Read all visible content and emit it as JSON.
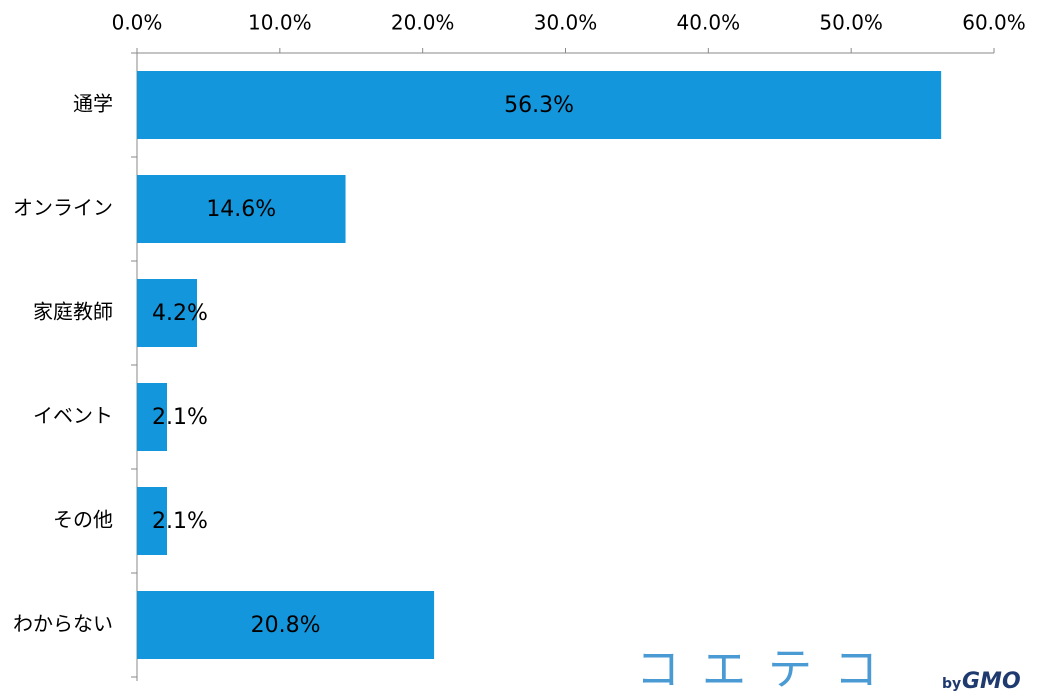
{
  "chart_data": {
    "type": "bar",
    "orientation": "horizontal",
    "categories": [
      "通学",
      "オンライン",
      "家庭教師",
      "イベント",
      "その他",
      "わからない"
    ],
    "values": [
      56.3,
      14.6,
      4.2,
      2.1,
      2.1,
      20.8
    ],
    "value_labels": [
      "56.3%",
      "14.6%",
      "4.2%",
      "2.1%",
      "2.1%",
      "20.8%"
    ],
    "color": "#1396db",
    "xlim": [
      0,
      60
    ],
    "xticks": [
      {
        "value": 0,
        "label": "0.0%"
      },
      {
        "value": 10,
        "label": "10.0%"
      },
      {
        "value": 20,
        "label": "20.0%"
      },
      {
        "value": 30,
        "label": "30.0%"
      },
      {
        "value": 40,
        "label": "40.0%"
      },
      {
        "value": 50,
        "label": "50.0%"
      },
      {
        "value": 60,
        "label": "60.0%"
      }
    ],
    "grid": false
  },
  "logo": {
    "name": "コエテコ",
    "by": "by",
    "brand": "GMO"
  }
}
